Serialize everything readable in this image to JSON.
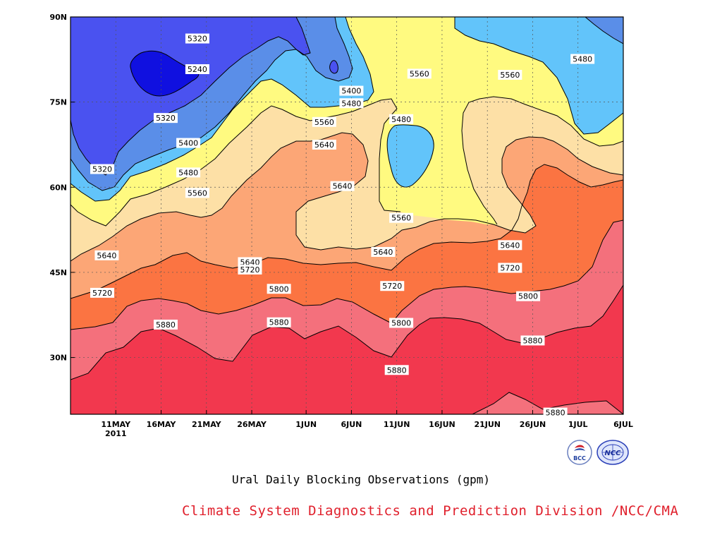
{
  "chart_data": {
    "type": "contour",
    "title": "Ural Daily Blocking Observations (gpm)",
    "x_ticks": [
      "11MAY",
      "16MAY",
      "21MAY",
      "26MAY",
      "1JUN",
      "6JUN",
      "11JUN",
      "16JUN",
      "21JUN",
      "26JUN",
      "1JUL",
      "6JUL"
    ],
    "x_tick_days": [
      11,
      16,
      21,
      26,
      32,
      37,
      42,
      47,
      52,
      57,
      62,
      67
    ],
    "x_year_label": "2011",
    "xlim_days": [
      6,
      67
    ],
    "y_ticks": [
      "30N",
      "45N",
      "60N",
      "75N",
      "90N"
    ],
    "y_tick_values": [
      30,
      45,
      60,
      75,
      90
    ],
    "ylim": [
      20,
      90
    ],
    "levels": [
      5240,
      5320,
      5400,
      5480,
      5560,
      5640,
      5720,
      5800,
      5880
    ],
    "colors": [
      "#1010e0",
      "#4a52f0",
      "#5a8ee8",
      "#62c4fa",
      "#fffa80",
      "#fde0a6",
      "#fca676",
      "#fb7442",
      "#f4707c",
      "#f2384e"
    ],
    "contour_labels": [
      {
        "value": "5320",
        "day": 20,
        "lat": 86.2
      },
      {
        "value": "5240",
        "day": 20,
        "lat": 80.8
      },
      {
        "value": "5320",
        "day": 16.5,
        "lat": 72.2
      },
      {
        "value": "5400",
        "day": 19,
        "lat": 67.8
      },
      {
        "value": "5480",
        "day": 19,
        "lat": 62.6
      },
      {
        "value": "5560",
        "day": 20,
        "lat": 59.0
      },
      {
        "value": "5320",
        "day": 9.5,
        "lat": 63.2
      },
      {
        "value": "5640",
        "day": 10,
        "lat": 48.0
      },
      {
        "value": "5720",
        "day": 9.5,
        "lat": 41.4
      },
      {
        "value": "5880",
        "day": 16.5,
        "lat": 35.8
      },
      {
        "value": "5640",
        "day": 25.8,
        "lat": 46.8
      },
      {
        "value": "5720",
        "day": 25.8,
        "lat": 45.5
      },
      {
        "value": "5800",
        "day": 29,
        "lat": 42.1
      },
      {
        "value": "5880",
        "day": 29,
        "lat": 36.2
      },
      {
        "value": "5400",
        "day": 37,
        "lat": 77.0
      },
      {
        "value": "5480",
        "day": 37,
        "lat": 74.8
      },
      {
        "value": "5560",
        "day": 34,
        "lat": 71.5
      },
      {
        "value": "5640",
        "day": 34,
        "lat": 67.5
      },
      {
        "value": "5640",
        "day": 36,
        "lat": 60.2
      },
      {
        "value": "5640",
        "day": 40.5,
        "lat": 48.6
      },
      {
        "value": "5720",
        "day": 41.5,
        "lat": 42.6
      },
      {
        "value": "5800",
        "day": 42.5,
        "lat": 36.1
      },
      {
        "value": "5880",
        "day": 42,
        "lat": 27.8
      },
      {
        "value": "5560",
        "day": 44.5,
        "lat": 80.0
      },
      {
        "value": "5480",
        "day": 42.5,
        "lat": 72.0
      },
      {
        "value": "5560",
        "day": 42.5,
        "lat": 54.6
      },
      {
        "value": "5560",
        "day": 54.5,
        "lat": 79.8
      },
      {
        "value": "5480",
        "day": 62.5,
        "lat": 82.6
      },
      {
        "value": "5640",
        "day": 54.5,
        "lat": 49.8
      },
      {
        "value": "5720",
        "day": 54.5,
        "lat": 45.8
      },
      {
        "value": "5800",
        "day": 56.5,
        "lat": 40.8
      },
      {
        "value": "5880",
        "day": 57,
        "lat": 33.0
      },
      {
        "value": "5880",
        "day": 59.5,
        "lat": 20.3
      }
    ]
  },
  "footer": {
    "title": "Ural Daily Blocking Observations (gpm)",
    "credit": "Climate System Diagnostics and Prediction Division /NCC/CMA"
  },
  "logos": {
    "left_icon": "bcc-logo",
    "right_icon": "ncc-logo",
    "left_text": "BCC",
    "right_text": "NCC"
  }
}
